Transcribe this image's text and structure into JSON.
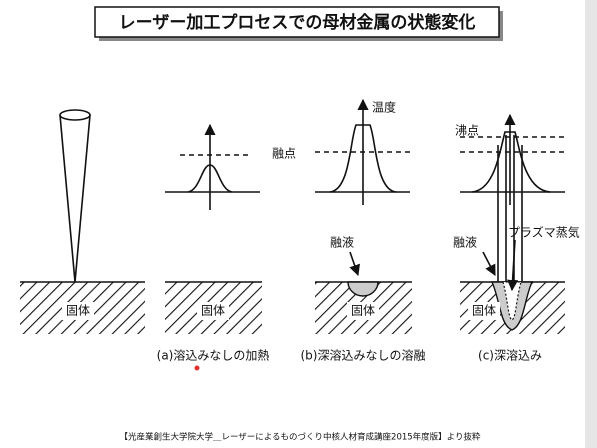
{
  "header": {
    "title": "レーザー加工プロセスでの母材金属の状態変化"
  },
  "diagram": {
    "solid_label": "固体",
    "axis_label": "温度",
    "melting_point": "融点",
    "boiling_point": "沸点",
    "melt": "融液",
    "plasma": "プラズマ蒸気",
    "captions": [
      "(a)溶込みなしの加熱",
      "(b)深溶込みなしの溶融",
      "(c)深溶込み"
    ]
  },
  "footer": {
    "source": "【光産業創生大学院大学＿レーザーによるものづくり中核人材育成講座2015年度版】より抜粋"
  }
}
